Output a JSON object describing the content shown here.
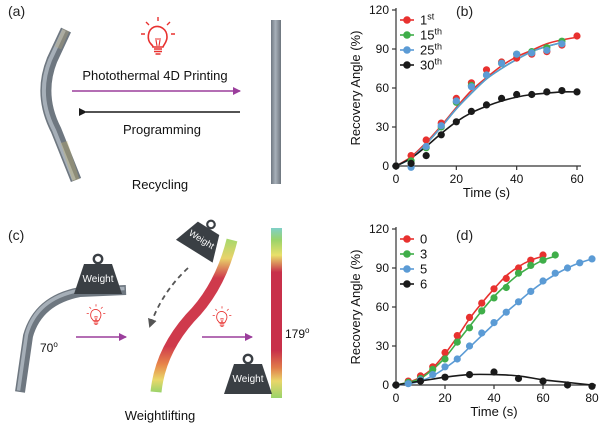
{
  "panels": {
    "a": {
      "label": "(a)",
      "forward_label": "Photothermal 4D Printing",
      "backward_label": "Programming",
      "caption": "Recycling"
    },
    "c": {
      "label": "(c)",
      "weight_label": "Weight",
      "angle_start": "70",
      "angle_end": "179",
      "degree_symbol": "o",
      "caption": "Weightlifting"
    }
  },
  "colors": {
    "red": "#e8312f",
    "green": "#3fae49",
    "blue": "#5b9bd5",
    "black": "#1a1a1a",
    "purple": "#9b3e9c",
    "bulb": "#e8312f",
    "rod": "#8a949e",
    "weight": "#3a3f44"
  },
  "chart_data": [
    {
      "panel": "(b)",
      "type": "scatter",
      "xlabel": "Time (s)",
      "ylabel": "Recovery Angle (%)",
      "xlim": [
        0,
        60
      ],
      "ylim": [
        0,
        120
      ],
      "xticks": [
        "0",
        "20",
        "40",
        "60"
      ],
      "yticks": [
        "0",
        "30",
        "60",
        "90",
        "120"
      ],
      "legend_position": "top-left",
      "series": [
        {
          "name": "1",
          "sup": "st",
          "color": "#e8312f",
          "x": [
            0,
            5,
            10,
            15,
            20,
            25,
            30,
            35,
            40,
            45,
            50,
            55,
            60
          ],
          "values": [
            0,
            8,
            20,
            33,
            52,
            64,
            74,
            80,
            83,
            86,
            88,
            93,
            100
          ],
          "fit": [
            0,
            7,
            18,
            31,
            45,
            58,
            68,
            77,
            84,
            89,
            94,
            97,
            99
          ]
        },
        {
          "name": "15",
          "sup": "th",
          "color": "#3fae49",
          "x": [
            0,
            5,
            10,
            15,
            20,
            25,
            30,
            35,
            40,
            45,
            50,
            55
          ],
          "values": [
            0,
            4,
            14,
            30,
            49,
            62,
            70,
            79,
            86,
            88,
            91,
            96
          ],
          "fit": [
            0,
            6,
            17,
            30,
            44,
            56,
            67,
            75,
            82,
            88,
            92,
            95
          ]
        },
        {
          "name": "25",
          "sup": "th",
          "color": "#5b9bd5",
          "x": [
            0,
            5,
            10,
            15,
            20,
            25,
            30,
            35,
            40,
            45,
            50,
            55
          ],
          "values": [
            0,
            -1,
            15,
            31,
            50,
            61,
            70,
            79,
            86,
            87,
            89,
            94
          ],
          "fit": [
            0,
            6,
            17,
            30,
            44,
            56,
            67,
            75,
            82,
            88,
            92,
            95
          ]
        },
        {
          "name": "30",
          "sup": "th",
          "color": "#1a1a1a",
          "x": [
            0,
            5,
            10,
            15,
            20,
            25,
            30,
            35,
            40,
            45,
            50,
            55,
            60
          ],
          "values": [
            0,
            2,
            8,
            24,
            34,
            42,
            47,
            52,
            55,
            55,
            57,
            58,
            57
          ],
          "fit": [
            0,
            6,
            15,
            25,
            34,
            41,
            46,
            50,
            53,
            55,
            56,
            57,
            57
          ]
        }
      ]
    },
    {
      "panel": "(d)",
      "type": "scatter",
      "xlabel": "Time (s)",
      "ylabel": "Recovery Angle (%)",
      "xlim": [
        0,
        80
      ],
      "ylim": [
        0,
        120
      ],
      "xticks": [
        "0",
        "20",
        "40",
        "60",
        "80"
      ],
      "yticks": [
        "0",
        "30",
        "60",
        "90",
        "120"
      ],
      "legend_position": "top-left",
      "series": [
        {
          "name": "0",
          "sup": "",
          "color": "#e8312f",
          "x": [
            0,
            5,
            10,
            15,
            20,
            25,
            30,
            35,
            40,
            45,
            50,
            55,
            60
          ],
          "values": [
            0,
            3,
            7,
            14,
            25,
            38,
            52,
            63,
            74,
            82,
            90,
            96,
            100
          ],
          "fit": [
            0,
            2,
            6,
            13,
            24,
            37,
            51,
            63,
            74,
            84,
            91,
            96,
            99
          ]
        },
        {
          "name": "3",
          "sup": "",
          "color": "#3fae49",
          "x": [
            0,
            5,
            10,
            15,
            20,
            25,
            30,
            35,
            40,
            45,
            50,
            55,
            60,
            65
          ],
          "values": [
            0,
            2,
            5,
            12,
            20,
            33,
            44,
            57,
            67,
            75,
            86,
            92,
            96,
            100
          ],
          "fit": [
            0,
            2,
            5,
            12,
            21,
            33,
            45,
            57,
            68,
            77,
            85,
            91,
            96,
            99
          ]
        },
        {
          "name": "5",
          "sup": "",
          "color": "#5b9bd5",
          "x": [
            0,
            5,
            10,
            15,
            20,
            25,
            30,
            35,
            40,
            45,
            50,
            55,
            60,
            65,
            70,
            75,
            80
          ],
          "values": [
            0,
            1,
            4,
            8,
            14,
            20,
            30,
            40,
            48,
            56,
            64,
            72,
            80,
            86,
            90,
            94,
            97
          ],
          "fit": [
            0,
            1,
            3,
            7,
            13,
            20,
            29,
            38,
            47,
            56,
            64,
            72,
            79,
            85,
            90,
            94,
            97
          ]
        },
        {
          "name": "6",
          "sup": "",
          "color": "#1a1a1a",
          "x": [
            0,
            10,
            20,
            30,
            40,
            50,
            60,
            70,
            80
          ],
          "values": [
            0,
            3,
            6,
            8,
            10,
            5,
            3,
            0,
            -1
          ],
          "fit": [
            0,
            3,
            6,
            8,
            8,
            7,
            4,
            2,
            0
          ]
        }
      ]
    }
  ]
}
